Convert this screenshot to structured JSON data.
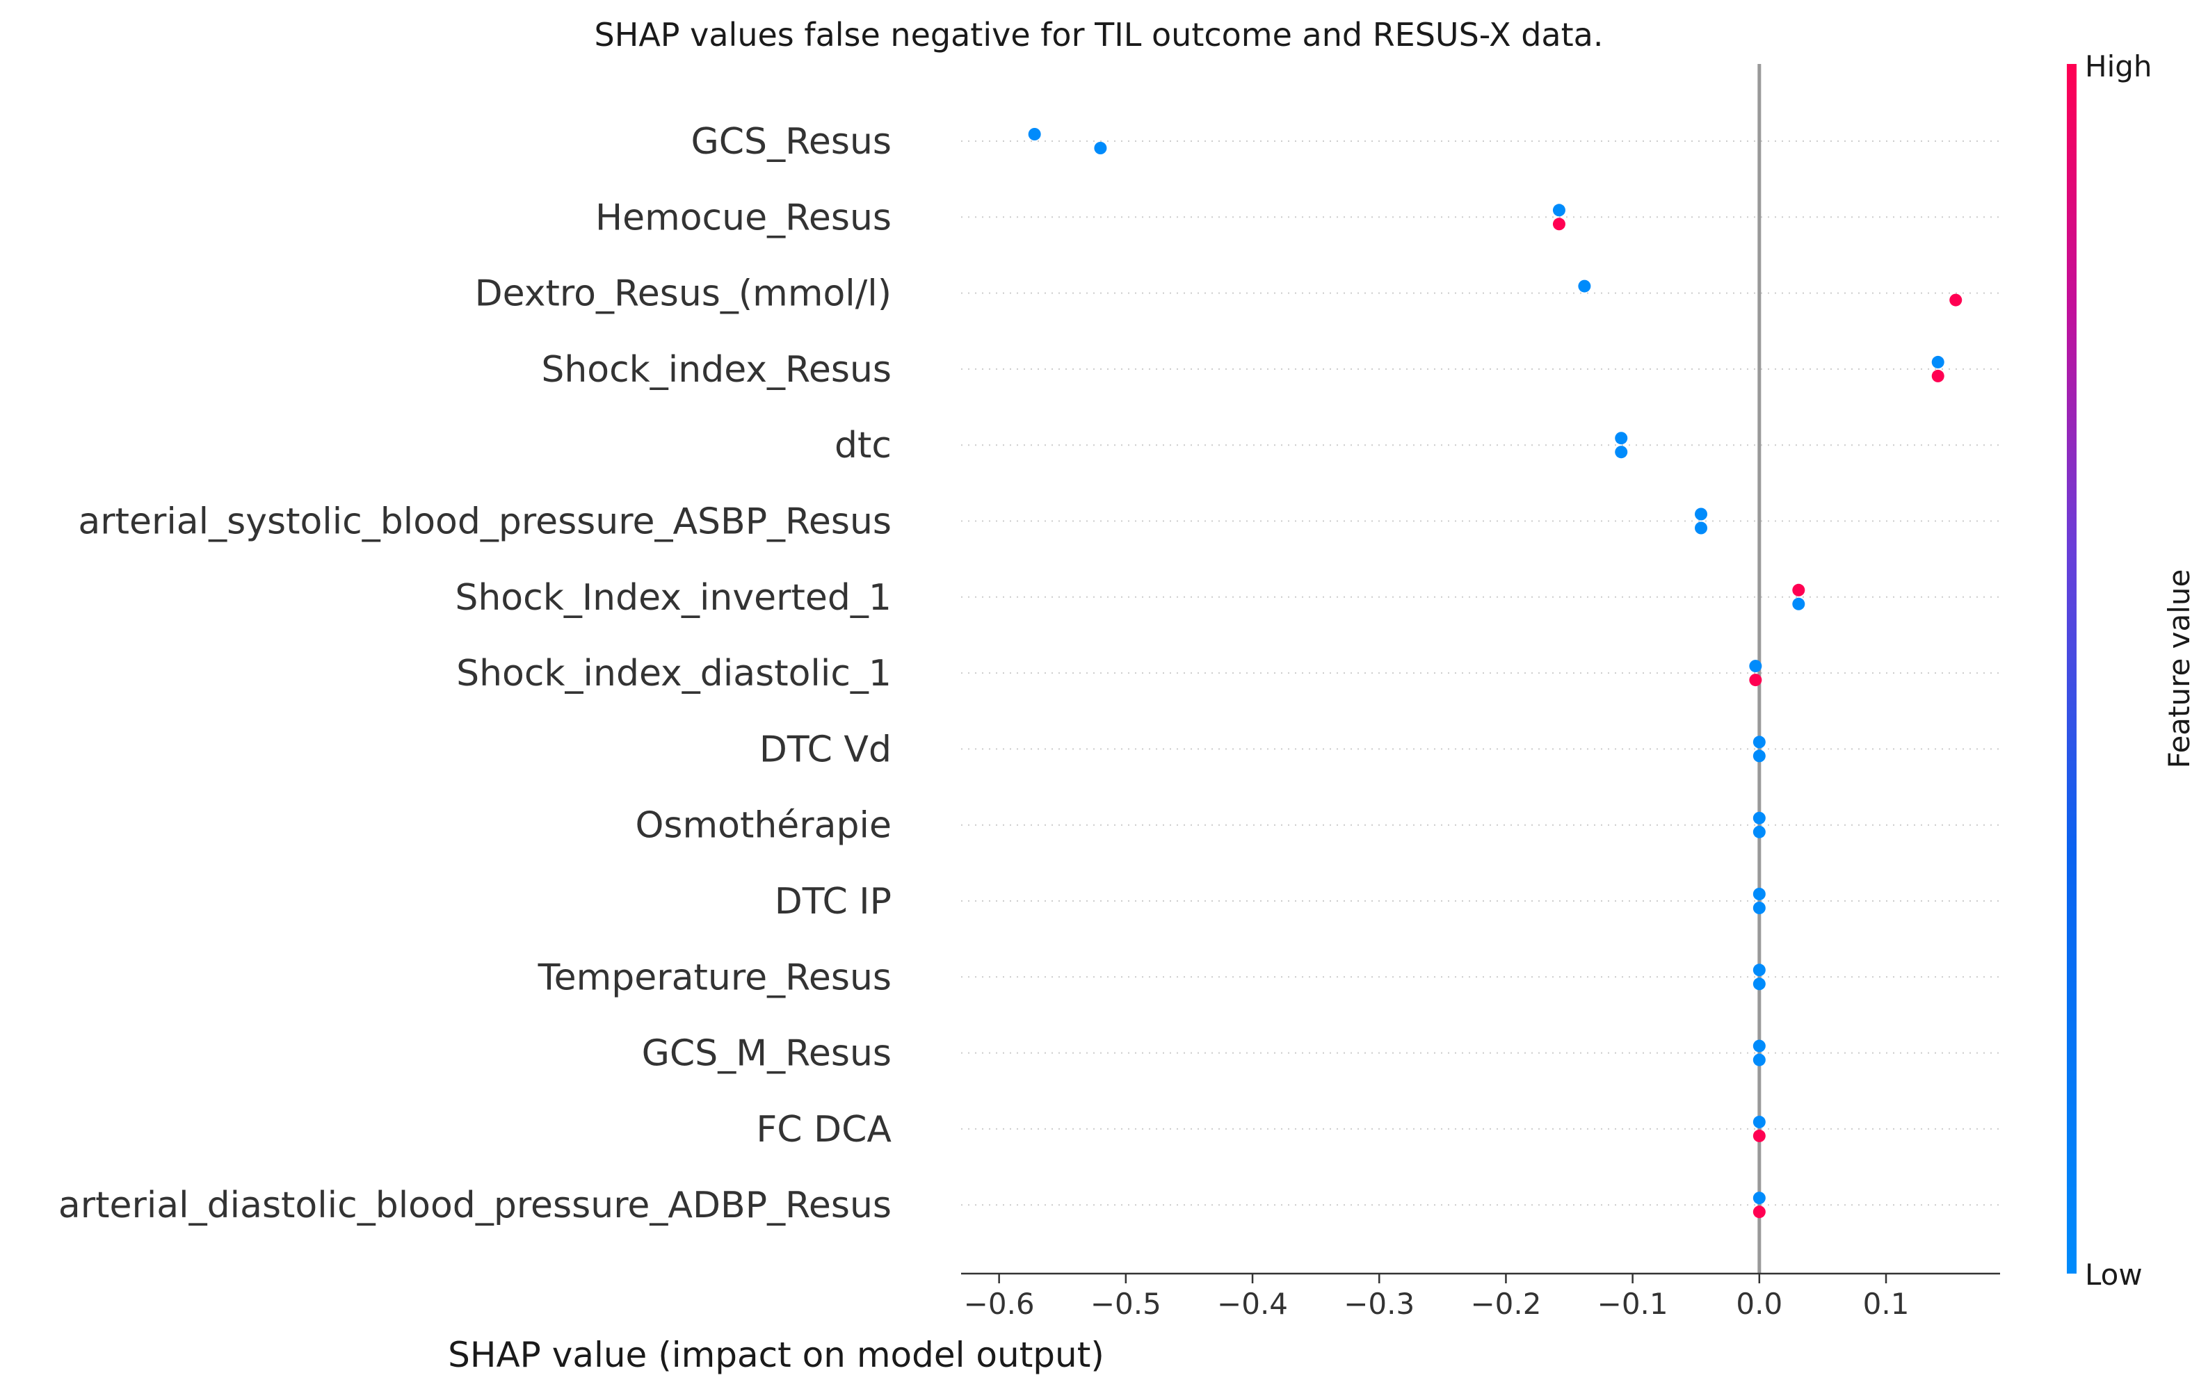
{
  "chart_data": {
    "type": "scatter",
    "title": "SHAP values false negative for TIL outcome and RESUS-X data.",
    "xlabel": "SHAP value (impact on model output)",
    "xlim": [
      -0.63,
      0.19
    ],
    "xticks": [
      -0.6,
      -0.5,
      -0.4,
      -0.3,
      -0.2,
      -0.1,
      0.0,
      0.1
    ],
    "xtick_labels": [
      "−0.6",
      "−0.5",
      "−0.4",
      "−0.3",
      "−0.2",
      "−0.1",
      "0.0",
      "0.1"
    ],
    "zero_line": 0.0,
    "grid": "dotted horizontal row lines",
    "colorbar": {
      "label": "Feature value",
      "high_label": "High",
      "low_label": "Low",
      "high_color": "#ff0052",
      "low_color": "#008bfb",
      "mid_color": "#8a3dd0",
      "placement": "right"
    },
    "features": [
      {
        "name": "GCS_Resus",
        "points": [
          {
            "x": -0.572,
            "v": "low"
          },
          {
            "x": -0.52,
            "v": "low"
          }
        ]
      },
      {
        "name": "Hemocue_Resus",
        "points": [
          {
            "x": -0.158,
            "v": "low"
          },
          {
            "x": -0.158,
            "v": "high"
          }
        ]
      },
      {
        "name": "Dextro_Resus_(mmol/l)",
        "points": [
          {
            "x": -0.138,
            "v": "low"
          },
          {
            "x": 0.155,
            "v": "high"
          }
        ]
      },
      {
        "name": "Shock_index_Resus",
        "points": [
          {
            "x": 0.141,
            "v": "low"
          },
          {
            "x": 0.141,
            "v": "high"
          }
        ]
      },
      {
        "name": "dtc",
        "points": [
          {
            "x": -0.109,
            "v": "low"
          },
          {
            "x": -0.109,
            "v": "low"
          }
        ]
      },
      {
        "name": "arterial_systolic_blood_pressure_ASBP_Resus",
        "points": [
          {
            "x": -0.046,
            "v": "low"
          },
          {
            "x": -0.046,
            "v": "low"
          }
        ]
      },
      {
        "name": "Shock_Index_inverted_1",
        "points": [
          {
            "x": 0.031,
            "v": "high"
          },
          {
            "x": 0.031,
            "v": "low"
          }
        ]
      },
      {
        "name": "Shock_index_diastolic_1",
        "points": [
          {
            "x": -0.003,
            "v": "low"
          },
          {
            "x": -0.003,
            "v": "high"
          }
        ]
      },
      {
        "name": "DTC Vd",
        "points": [
          {
            "x": 0.0,
            "v": "low"
          },
          {
            "x": 0.0,
            "v": "low"
          }
        ]
      },
      {
        "name": "Osmothérapie",
        "points": [
          {
            "x": 0.0,
            "v": "low"
          },
          {
            "x": 0.0,
            "v": "low"
          }
        ]
      },
      {
        "name": "DTC IP",
        "points": [
          {
            "x": 0.0,
            "v": "low"
          },
          {
            "x": 0.0,
            "v": "low"
          }
        ]
      },
      {
        "name": "Temperature_Resus",
        "points": [
          {
            "x": 0.0,
            "v": "low"
          },
          {
            "x": 0.0,
            "v": "low"
          }
        ]
      },
      {
        "name": "GCS_M_Resus",
        "points": [
          {
            "x": 0.0,
            "v": "low"
          },
          {
            "x": 0.0,
            "v": "low"
          }
        ]
      },
      {
        "name": "FC  DCA",
        "points": [
          {
            "x": 0.0,
            "v": "low"
          },
          {
            "x": 0.0,
            "v": "high"
          }
        ]
      },
      {
        "name": "arterial_diastolic_blood_pressure_ADBP_Resus",
        "points": [
          {
            "x": 0.0,
            "v": "low"
          },
          {
            "x": 0.0,
            "v": "high"
          }
        ]
      }
    ]
  }
}
